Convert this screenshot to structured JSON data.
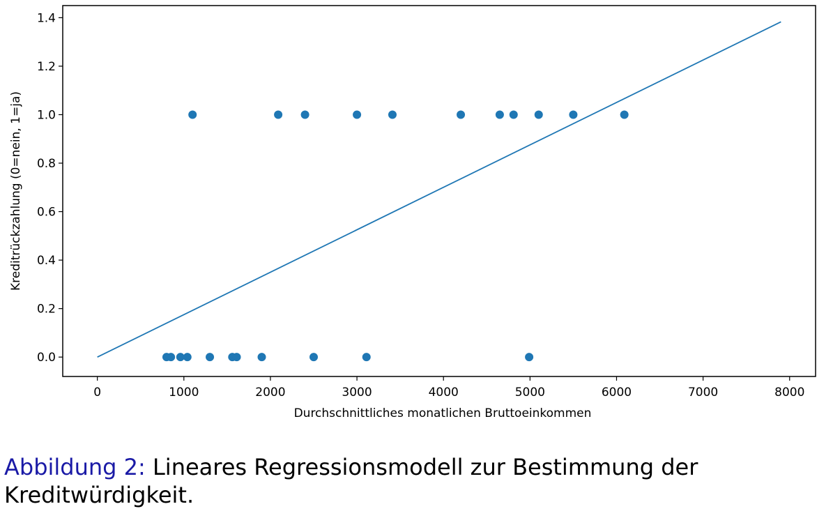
{
  "chart_data": {
    "type": "scatter",
    "xlabel": "Durchschnittliches monatlichen Bruttoeinkommen",
    "ylabel": "Kreditrückzahlung (0=nein, 1=ja)",
    "xlim": [
      -400,
      8300
    ],
    "ylim": [
      -0.08,
      1.45
    ],
    "xticks": [
      0,
      1000,
      2000,
      3000,
      4000,
      5000,
      6000,
      7000,
      8000
    ],
    "yticks": [
      0.0,
      0.2,
      0.4,
      0.6,
      0.8,
      1.0,
      1.2,
      1.4
    ],
    "xtick_labels": [
      "0",
      "1000",
      "2000",
      "3000",
      "4000",
      "5000",
      "6000",
      "7000",
      "8000"
    ],
    "ytick_labels": [
      "0.0",
      "0.2",
      "0.4",
      "0.6",
      "0.8",
      "1.0",
      "1.2",
      "1.4"
    ],
    "grid": false,
    "color": "#1f77b4",
    "points": {
      "x": [
        800,
        850,
        960,
        1040,
        1300,
        1560,
        1610,
        1900,
        2500,
        3110,
        4990,
        1100,
        2090,
        2400,
        3000,
        3410,
        4200,
        4650,
        4810,
        5100,
        5500,
        6090
      ],
      "y": [
        0,
        0,
        0,
        0,
        0,
        0,
        0,
        0,
        0,
        0,
        0,
        1,
        1,
        1,
        1,
        1,
        1,
        1,
        1,
        1,
        1,
        1
      ]
    },
    "regression_line": {
      "x": [
        0,
        7900
      ],
      "y": [
        0.0,
        1.383
      ]
    }
  },
  "caption": {
    "prefix": "Abbildung 2:",
    "line1": " Lineares Regressionsmodell zur Bestimmung der",
    "line2": "Kreditwürdigkeit."
  }
}
